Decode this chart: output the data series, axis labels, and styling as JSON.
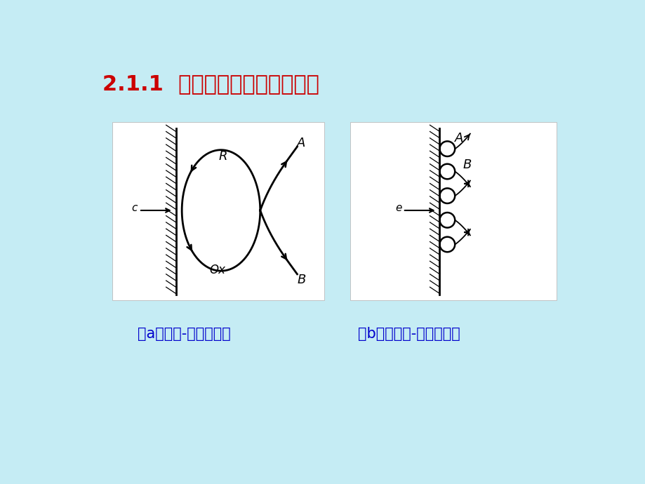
{
  "bg_color": "#c5ecf4",
  "title": "2.1.1  电傅化的类型及一般原理",
  "title_color": "#cc0000",
  "title_fontsize": 22,
  "panel_bg": "#f5f5f5",
  "label_a": "（a）氧化-还原电傅化",
  "label_b": "（b）非氧化-还原电傅化",
  "caption_color": "#0000cc",
  "caption_fontsize": 15
}
